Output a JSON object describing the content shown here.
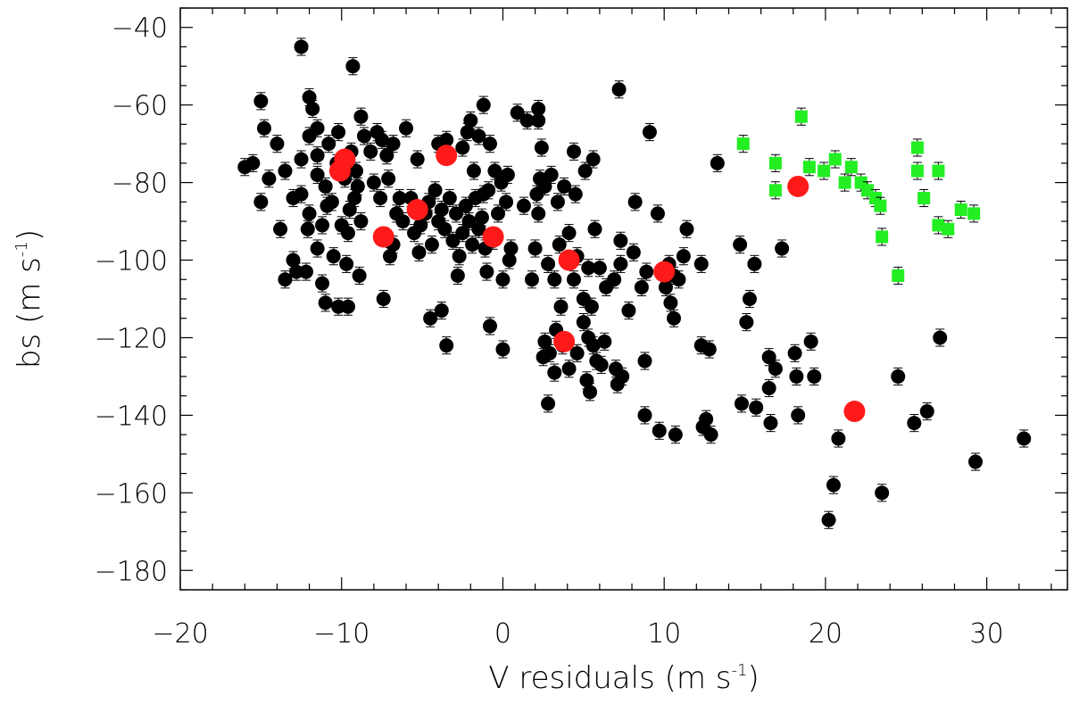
{
  "chart_data": {
    "type": "scatter",
    "xlabel": {
      "text": "V residuals (m s",
      "sup": "-1",
      "close": ")"
    },
    "ylabel": {
      "text": "bs (m s",
      "sup": "-1",
      "close": ")"
    },
    "xlim": [
      -20,
      35
    ],
    "ylim": [
      -185,
      -35
    ],
    "x_ticks": [
      -20,
      -10,
      0,
      10,
      20,
      30
    ],
    "y_ticks": [
      -180,
      -160,
      -140,
      -120,
      -100,
      -80,
      -60,
      -40
    ],
    "grid": false,
    "legend": "none",
    "colors": {
      "black_series": "#000000",
      "red_series": "#ff1a1a",
      "green_series": "#22ee22"
    },
    "series": [
      {
        "marker": "circle",
        "color": "#000000",
        "points": [
          [
            -12.5,
            -45
          ],
          [
            -9.3,
            -50
          ],
          [
            -15,
            -59
          ],
          [
            -12,
            -58
          ],
          [
            -11.8,
            -61
          ],
          [
            -14.8,
            -66
          ],
          [
            -14,
            -70
          ],
          [
            -12,
            -68
          ],
          [
            -11.5,
            -66
          ],
          [
            -10.2,
            -67
          ],
          [
            -10.8,
            -70
          ],
          [
            -11.5,
            -73
          ],
          [
            -12.5,
            -74
          ],
          [
            -13.5,
            -77
          ],
          [
            -14.5,
            -79
          ],
          [
            -16,
            -76
          ],
          [
            -15.5,
            -75
          ],
          [
            -15,
            -85
          ],
          [
            -13.8,
            -92
          ],
          [
            -13,
            -84
          ],
          [
            -12.5,
            -83
          ],
          [
            -12,
            -88
          ],
          [
            -11.5,
            -78
          ],
          [
            -11,
            -81
          ],
          [
            -10.6,
            -85
          ],
          [
            -10.3,
            -75
          ],
          [
            -9.8,
            -79
          ],
          [
            -9.5,
            -87
          ],
          [
            -9.2,
            -84
          ],
          [
            -8.8,
            -90
          ],
          [
            -9.6,
            -93
          ],
          [
            -10,
            -91
          ],
          [
            -9,
            -81
          ],
          [
            -8.6,
            -68
          ],
          [
            -8.2,
            -72
          ],
          [
            -7.8,
            -67
          ],
          [
            -7.5,
            -69
          ],
          [
            -7.2,
            -73
          ],
          [
            -6.8,
            -70
          ],
          [
            -8.8,
            -63
          ],
          [
            -8,
            -80
          ],
          [
            -7.6,
            -84
          ],
          [
            -7.1,
            -79
          ],
          [
            -6.6,
            -88
          ],
          [
            -6.4,
            -84
          ],
          [
            -6,
            -66
          ],
          [
            -5.7,
            -84
          ],
          [
            -5.3,
            -74
          ],
          [
            -5.1,
            -91
          ],
          [
            -4.8,
            -88
          ],
          [
            -4.6,
            -85
          ],
          [
            -4.4,
            -96
          ],
          [
            -4.2,
            -82
          ],
          [
            -4,
            -90
          ],
          [
            -3.8,
            -87
          ],
          [
            -3.6,
            -92
          ],
          [
            -3.3,
            -84
          ],
          [
            -3.1,
            -95
          ],
          [
            -2.9,
            -88
          ],
          [
            -2.7,
            -99
          ],
          [
            -2.5,
            -93
          ],
          [
            -2.3,
            -86
          ],
          [
            -2.1,
            -90
          ],
          [
            -1.9,
            -96
          ],
          [
            -1.7,
            -84
          ],
          [
            -1.5,
            -92
          ],
          [
            -1.3,
            -89
          ],
          [
            -1.1,
            -97
          ],
          [
            -0.9,
            -82
          ],
          [
            -0.6,
            -95
          ],
          [
            -0.3,
            -88
          ],
          [
            -0.1,
            -80
          ],
          [
            0.2,
            -85
          ],
          [
            -4,
            -70
          ],
          [
            -3.5,
            -69
          ],
          [
            -2.5,
            -71
          ],
          [
            -2.2,
            -67
          ],
          [
            -2,
            -64
          ],
          [
            -1.5,
            -68
          ],
          [
            -1.2,
            -60
          ],
          [
            -0.5,
            -77
          ],
          [
            0.3,
            -78
          ],
          [
            -1.8,
            -77
          ],
          [
            -0.8,
            -70
          ],
          [
            -1.2,
            -83
          ],
          [
            -5.5,
            -93
          ],
          [
            -6.2,
            -90
          ],
          [
            -6.8,
            -96
          ],
          [
            -7,
            -99
          ],
          [
            -5.2,
            -98
          ],
          [
            -4.5,
            -115
          ],
          [
            -3.8,
            -113
          ],
          [
            -3.5,
            -122
          ],
          [
            -2.8,
            -104
          ],
          [
            -1,
            -103
          ],
          [
            0,
            -105
          ],
          [
            -0.8,
            -117
          ],
          [
            0,
            -123
          ],
          [
            0.4,
            -100
          ],
          [
            0.5,
            -97
          ],
          [
            1.3,
            -86
          ],
          [
            1.8,
            -105
          ],
          [
            2,
            -97
          ],
          [
            0.9,
            -62
          ],
          [
            1.5,
            -64
          ],
          [
            2.2,
            -61
          ],
          [
            2.2,
            -64
          ],
          [
            2.4,
            -71
          ],
          [
            2.3,
            -79
          ],
          [
            2.6,
            -81
          ],
          [
            2.1,
            -83
          ],
          [
            2.2,
            -88
          ],
          [
            3,
            -78
          ],
          [
            3.4,
            -85
          ],
          [
            3.8,
            -81
          ],
          [
            4.5,
            -83
          ],
          [
            4.4,
            -72
          ],
          [
            5.1,
            -77
          ],
          [
            5.6,
            -74
          ],
          [
            2.8,
            -101
          ],
          [
            3.2,
            -105
          ],
          [
            3.5,
            -96
          ],
          [
            4.1,
            -93
          ],
          [
            4.6,
            -99
          ],
          [
            4.4,
            -105
          ],
          [
            5,
            -110
          ],
          [
            5.5,
            -112
          ],
          [
            5.3,
            -102
          ],
          [
            5.7,
            -92
          ],
          [
            6,
            -102
          ],
          [
            6.4,
            -107
          ],
          [
            6.9,
            -105
          ],
          [
            7.3,
            -101
          ],
          [
            7.3,
            -95
          ],
          [
            7.8,
            -113
          ],
          [
            8.1,
            -98
          ],
          [
            8.6,
            -107
          ],
          [
            8.9,
            -103
          ],
          [
            7.2,
            -56
          ],
          [
            9.1,
            -67
          ],
          [
            8.2,
            -85
          ],
          [
            9.6,
            -88
          ],
          [
            10.3,
            -101
          ],
          [
            10.6,
            -104
          ],
          [
            10.9,
            -105
          ],
          [
            10.1,
            -107
          ],
          [
            10.4,
            -111
          ],
          [
            10.6,
            -115
          ],
          [
            11.2,
            -99
          ],
          [
            11.4,
            -92
          ],
          [
            12.3,
            -101
          ],
          [
            3.6,
            -112
          ],
          [
            3.3,
            -118
          ],
          [
            2.6,
            -121
          ],
          [
            2.9,
            -124
          ],
          [
            2.5,
            -125
          ],
          [
            3.2,
            -129
          ],
          [
            2.8,
            -137
          ],
          [
            3.7,
            -122
          ],
          [
            4.1,
            -128
          ],
          [
            4.6,
            -124
          ],
          [
            5,
            -116
          ],
          [
            5.3,
            -120
          ],
          [
            5.6,
            -122
          ],
          [
            5.8,
            -126
          ],
          [
            5.2,
            -131
          ],
          [
            5.4,
            -134
          ],
          [
            6.1,
            -127
          ],
          [
            6.3,
            -121
          ],
          [
            7,
            -128
          ],
          [
            7.1,
            -132
          ],
          [
            7.4,
            -130
          ],
          [
            8.8,
            -126
          ],
          [
            8.8,
            -140
          ],
          [
            9.7,
            -144
          ],
          [
            10.7,
            -145
          ],
          [
            12.3,
            -122
          ],
          [
            12.8,
            -123
          ],
          [
            12.4,
            -143
          ],
          [
            12.6,
            -141
          ],
          [
            12.9,
            -145
          ],
          [
            13.3,
            -75
          ],
          [
            14.7,
            -96
          ],
          [
            15.1,
            -116
          ],
          [
            15.3,
            -110
          ],
          [
            15.6,
            -101
          ],
          [
            14.8,
            -137
          ],
          [
            15.7,
            -138
          ],
          [
            16.5,
            -125
          ],
          [
            16.5,
            -133
          ],
          [
            16.6,
            -142
          ],
          [
            16.9,
            -128
          ],
          [
            17.3,
            -97
          ],
          [
            18.1,
            -124
          ],
          [
            18.2,
            -130
          ],
          [
            18.3,
            -140
          ],
          [
            19.1,
            -121
          ],
          [
            19.3,
            -130
          ],
          [
            20.2,
            -167
          ],
          [
            20.5,
            -158
          ],
          [
            20.8,
            -146
          ],
          [
            23.5,
            -160
          ],
          [
            24.5,
            -130
          ],
          [
            25.5,
            -142
          ],
          [
            26.3,
            -139
          ],
          [
            27.1,
            -120
          ],
          [
            29.3,
            -152
          ],
          [
            32.3,
            -146
          ],
          [
            -10.2,
            -112
          ],
          [
            -12.2,
            -103
          ],
          [
            -12.8,
            -103
          ],
          [
            -11.2,
            -106
          ],
          [
            -11,
            -111
          ],
          [
            -9.6,
            -112
          ],
          [
            -8.9,
            -104
          ],
          [
            -7.4,
            -110
          ],
          [
            -9.7,
            -101
          ],
          [
            -11.5,
            -97
          ],
          [
            -10.5,
            -99
          ],
          [
            -13,
            -100
          ],
          [
            -13.5,
            -105
          ],
          [
            -9.4,
            -72
          ],
          [
            -9.1,
            -77
          ],
          [
            -10.9,
            -86
          ],
          [
            -11.2,
            -91
          ],
          [
            -12.1,
            -92
          ]
        ]
      },
      {
        "marker": "circle",
        "color": "#ff1a1a",
        "points": [
          [
            -9.8,
            -74
          ],
          [
            -10.1,
            -77
          ],
          [
            -7.4,
            -94
          ],
          [
            -5.3,
            -87
          ],
          [
            -3.5,
            -73
          ],
          [
            -0.6,
            -94
          ],
          [
            4.1,
            -100
          ],
          [
            3.8,
            -121
          ],
          [
            10,
            -103
          ],
          [
            18.3,
            -81
          ],
          [
            21.8,
            -139
          ]
        ]
      },
      {
        "marker": "square",
        "color": "#22ee22",
        "points": [
          [
            14.9,
            -70
          ],
          [
            16.9,
            -75
          ],
          [
            16.9,
            -82
          ],
          [
            18.5,
            -63
          ],
          [
            19,
            -76
          ],
          [
            19.9,
            -77
          ],
          [
            20.6,
            -74
          ],
          [
            21.2,
            -80
          ],
          [
            21.6,
            -76
          ],
          [
            22.2,
            -80
          ],
          [
            22.6,
            -82
          ],
          [
            23.1,
            -84
          ],
          [
            23.4,
            -86
          ],
          [
            23.5,
            -94
          ],
          [
            24.5,
            -104
          ],
          [
            25.7,
            -71
          ],
          [
            25.7,
            -77
          ],
          [
            26.1,
            -84
          ],
          [
            27,
            -77
          ],
          [
            27,
            -91
          ],
          [
            27.6,
            -92
          ],
          [
            28.4,
            -87
          ],
          [
            29.2,
            -88
          ]
        ]
      }
    ]
  }
}
